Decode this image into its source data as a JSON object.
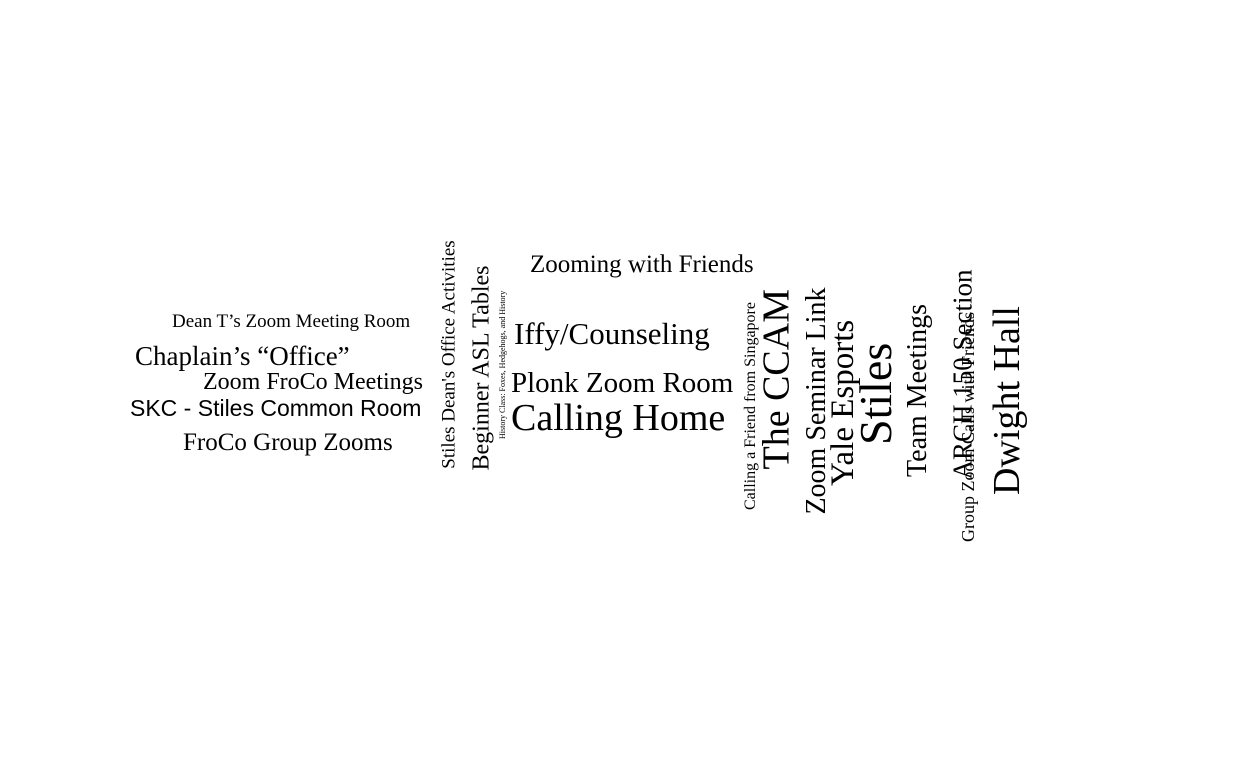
{
  "word_cloud": {
    "words": [
      {
        "id": "dean-t",
        "text": "Dean T’s Zoom Meeting Room"
      },
      {
        "id": "chaplain",
        "text": "Chaplain’s “Office”"
      },
      {
        "id": "zoom-froco",
        "text": "Zoom FroCo Meetings"
      },
      {
        "id": "skc",
        "text": "SKC - Stiles Common Room"
      },
      {
        "id": "froco-group",
        "text": "FroCo Group Zooms"
      },
      {
        "id": "stiles-dean",
        "text": "Stiles Dean's Office Activities"
      },
      {
        "id": "asl",
        "text": "Beginner ASL Tables"
      },
      {
        "id": "history",
        "text": "History Class: Foxes, Hedgehogs, and History"
      },
      {
        "id": "zooming",
        "text": "Zooming with Friends"
      },
      {
        "id": "iffy",
        "text": "Iffy/Counseling"
      },
      {
        "id": "plonk",
        "text": "Plonk Zoom Room"
      },
      {
        "id": "calling-home",
        "text": "Calling Home"
      },
      {
        "id": "singapore",
        "text": "Calling a Friend from Singapore"
      },
      {
        "id": "ccam",
        "text": "The CCAM"
      },
      {
        "id": "seminar",
        "text": "Zoom Seminar Link"
      },
      {
        "id": "esports",
        "text": "Yale Esports"
      },
      {
        "id": "stiles",
        "text": "Stiles"
      },
      {
        "id": "team",
        "text": "Team Meetings"
      },
      {
        "id": "arch",
        "text": "ARCH 150 Section"
      },
      {
        "id": "group-calls",
        "text": "Group Zoom Calls with Friends"
      },
      {
        "id": "dwight",
        "text": "Dwight Hall"
      }
    ]
  }
}
